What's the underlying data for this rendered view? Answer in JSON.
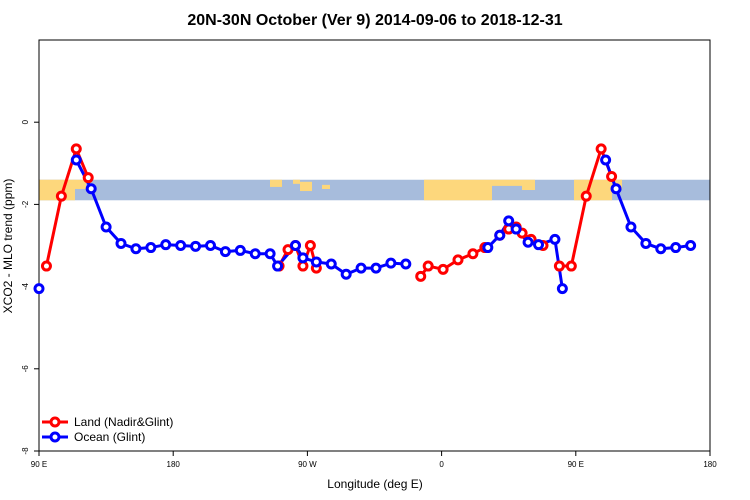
{
  "chart_data": {
    "type": "line",
    "title": "20N-30N October (Ver 9)   2014-09-06 to 2018-12-31",
    "xlabel": "Longitude (deg E)",
    "ylabel": "XCO2 - MLO trend (ppm)",
    "xlim": [
      90,
      540
    ],
    "ylim": [
      -8,
      2
    ],
    "x_ticks": [
      {
        "value": 90,
        "label": "90 E"
      },
      {
        "value": 180,
        "label": "180"
      },
      {
        "value": 270,
        "label": "90 W"
      },
      {
        "value": 360,
        "label": "0"
      },
      {
        "value": 450,
        "label": "90 E"
      },
      {
        "value": 540,
        "label": "180"
      }
    ],
    "y_ticks": [
      {
        "value": 0,
        "label": "0"
      },
      {
        "value": -2,
        "label": "-2"
      },
      {
        "value": -4,
        "label": "-4"
      },
      {
        "value": -6,
        "label": "-6"
      },
      {
        "value": -8,
        "label": "-8"
      }
    ],
    "map_strip": {
      "y_top": -1.4,
      "y_bottom": -1.9,
      "ocean_color": "#a7bcdc",
      "land_color": "#fdd77c"
    },
    "legend_position": "bottom-left",
    "series": [
      {
        "name": "Land (Nadir&Glint)",
        "color": "#ff0000",
        "segments": [
          [
            [
              95,
              -3.5
            ],
            [
              105,
              -1.8
            ],
            [
              115,
              -0.65
            ],
            [
              123,
              -1.35
            ]
          ],
          [
            [
              251,
              -3.5
            ],
            [
              257,
              -3.1
            ],
            [
              262,
              -3.0
            ],
            [
              267,
              -3.5
            ],
            [
              272,
              -3.0
            ],
            [
              276,
              -3.55
            ]
          ],
          [
            [
              346,
              -3.75
            ],
            [
              351,
              -3.5
            ],
            [
              361,
              -3.58
            ],
            [
              371,
              -3.35
            ],
            [
              381,
              -3.2
            ],
            [
              389,
              -3.05
            ]
          ],
          [
            [
              399,
              -2.75
            ],
            [
              405,
              -2.6
            ],
            [
              410,
              -2.55
            ],
            [
              414,
              -2.7
            ],
            [
              420,
              -2.85
            ],
            [
              428,
              -3.0
            ]
          ],
          [
            [
              439,
              -3.5
            ],
            [
              447,
              -3.5
            ],
            [
              457,
              -1.8
            ],
            [
              467,
              -0.65
            ],
            [
              474,
              -1.32
            ]
          ]
        ]
      },
      {
        "name": "Ocean (Glint)",
        "color": "#0000ff",
        "segments": [
          [
            [
              90,
              -4.05
            ]
          ],
          [
            [
              115,
              -0.92
            ],
            [
              125,
              -1.62
            ],
            [
              135,
              -2.55
            ],
            [
              145,
              -2.95
            ],
            [
              155,
              -3.08
            ],
            [
              165,
              -3.05
            ],
            [
              175,
              -2.98
            ],
            [
              185,
              -3.0
            ],
            [
              195,
              -3.02
            ],
            [
              205,
              -3.0
            ],
            [
              215,
              -3.15
            ],
            [
              225,
              -3.12
            ],
            [
              235,
              -3.2
            ],
            [
              245,
              -3.2
            ],
            [
              250,
              -3.5
            ],
            [
              262,
              -3.0
            ],
            [
              267,
              -3.3
            ],
            [
              276,
              -3.4
            ],
            [
              286,
              -3.45
            ],
            [
              296,
              -3.7
            ],
            [
              306,
              -3.55
            ],
            [
              316,
              -3.55
            ],
            [
              326,
              -3.43
            ],
            [
              336,
              -3.45
            ]
          ],
          [
            [
              391,
              -3.05
            ],
            [
              399,
              -2.75
            ],
            [
              405,
              -2.4
            ],
            [
              410,
              -2.6
            ],
            [
              418,
              -2.92
            ],
            [
              425,
              -2.98
            ],
            [
              436,
              -2.85
            ],
            [
              441,
              -4.05
            ]
          ],
          [
            [
              470,
              -0.92
            ],
            [
              477,
              -1.62
            ],
            [
              487,
              -2.55
            ],
            [
              497,
              -2.95
            ],
            [
              507,
              -3.08
            ],
            [
              517,
              -3.05
            ],
            [
              527,
              -3.0
            ]
          ]
        ]
      }
    ]
  }
}
